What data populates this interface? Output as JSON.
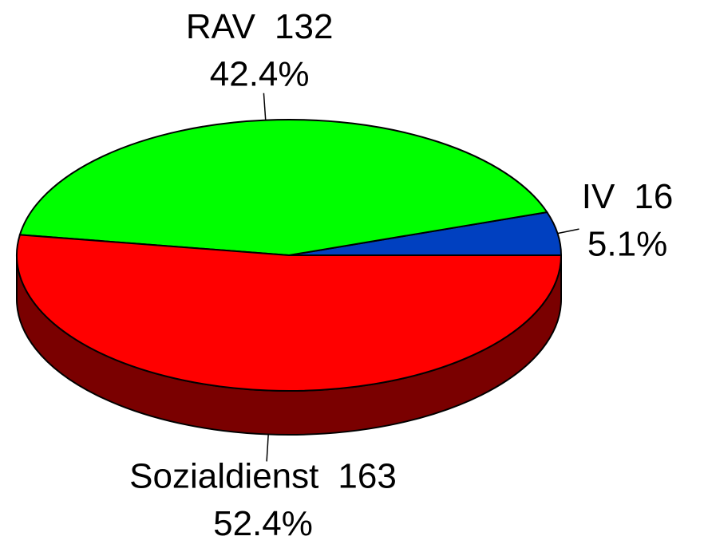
{
  "chart_data": {
    "type": "pie",
    "categories": [
      "IV",
      "RAV",
      "Sozialdienst"
    ],
    "values": [
      16,
      132,
      163
    ],
    "percent_labels": [
      "5.1%",
      "42.4%",
      "52.4%"
    ],
    "colors": [
      "#0040c0",
      "#00ff00",
      "#ff0000"
    ]
  }
}
